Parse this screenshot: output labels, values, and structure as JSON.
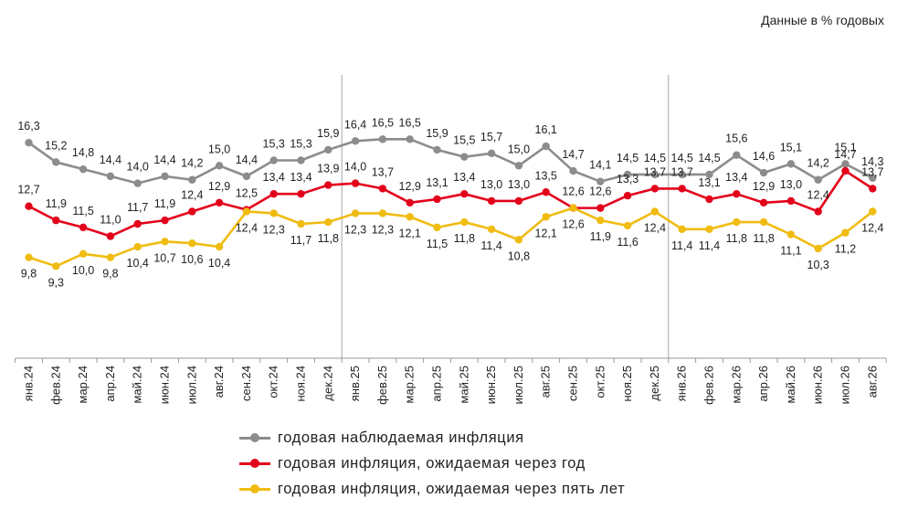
{
  "units_note": "Данные в % годовых",
  "chart_data": {
    "type": "line",
    "categories": [
      "янв.24",
      "фев.24",
      "мар.24",
      "апр.24",
      "май.24",
      "июн.24",
      "июл.24",
      "авг.24",
      "сен.24",
      "окт.24",
      "ноя.24",
      "дек.24",
      "янв.25",
      "фев.25",
      "мар.25",
      "апр.25",
      "май.25",
      "июн.25",
      "июл.25",
      "авг.25",
      "сен.25",
      "окт.25",
      "ноя.25",
      "дек.25",
      "янв.26",
      "фев.26",
      "мар.26",
      "апр.26",
      "май.26",
      "июн.26",
      "июл.26",
      "авг.26"
    ],
    "series": [
      {
        "name": "годовая наблюдаемая  инфляция",
        "color": "#8c8c8c",
        "values": [
          16.3,
          15.2,
          14.8,
          14.4,
          14.0,
          14.4,
          14.2,
          15.0,
          14.4,
          15.3,
          15.3,
          15.9,
          16.4,
          16.5,
          16.5,
          15.9,
          15.5,
          15.7,
          15.0,
          16.1,
          14.7,
          14.1,
          14.5,
          14.5,
          14.5,
          14.5,
          15.6,
          14.6,
          15.1,
          14.2,
          15.1,
          14.3
        ]
      },
      {
        "name": "годовая инфляция,  ожидаемая  через год",
        "color": "#e3001b",
        "values": [
          12.7,
          11.9,
          11.5,
          11.0,
          11.7,
          11.9,
          12.4,
          12.9,
          12.5,
          13.4,
          13.4,
          13.9,
          14.0,
          13.7,
          12.9,
          13.1,
          13.4,
          13.0,
          13.0,
          13.5,
          12.6,
          12.6,
          13.3,
          13.7,
          13.7,
          13.1,
          13.4,
          12.9,
          13.0,
          12.4,
          14.7,
          13.7
        ]
      },
      {
        "name": "годовая инфляция,  ожидаемая  через пять лет",
        "color": "#f0bc12",
        "values": [
          9.8,
          9.3,
          10.0,
          9.8,
          10.4,
          10.7,
          10.6,
          10.4,
          12.4,
          12.3,
          11.7,
          11.8,
          12.3,
          12.3,
          12.1,
          11.5,
          11.8,
          11.4,
          10.8,
          12.1,
          12.6,
          11.9,
          11.6,
          12.4,
          11.4,
          11.4,
          11.8,
          11.8,
          11.1,
          10.3,
          11.2,
          12.4
        ]
      }
    ],
    "ylim": [
      6.7,
      18.0
    ],
    "separators_after": [
      "дек.24",
      "дек.25"
    ],
    "grid": false,
    "legend_position": "bottom"
  }
}
